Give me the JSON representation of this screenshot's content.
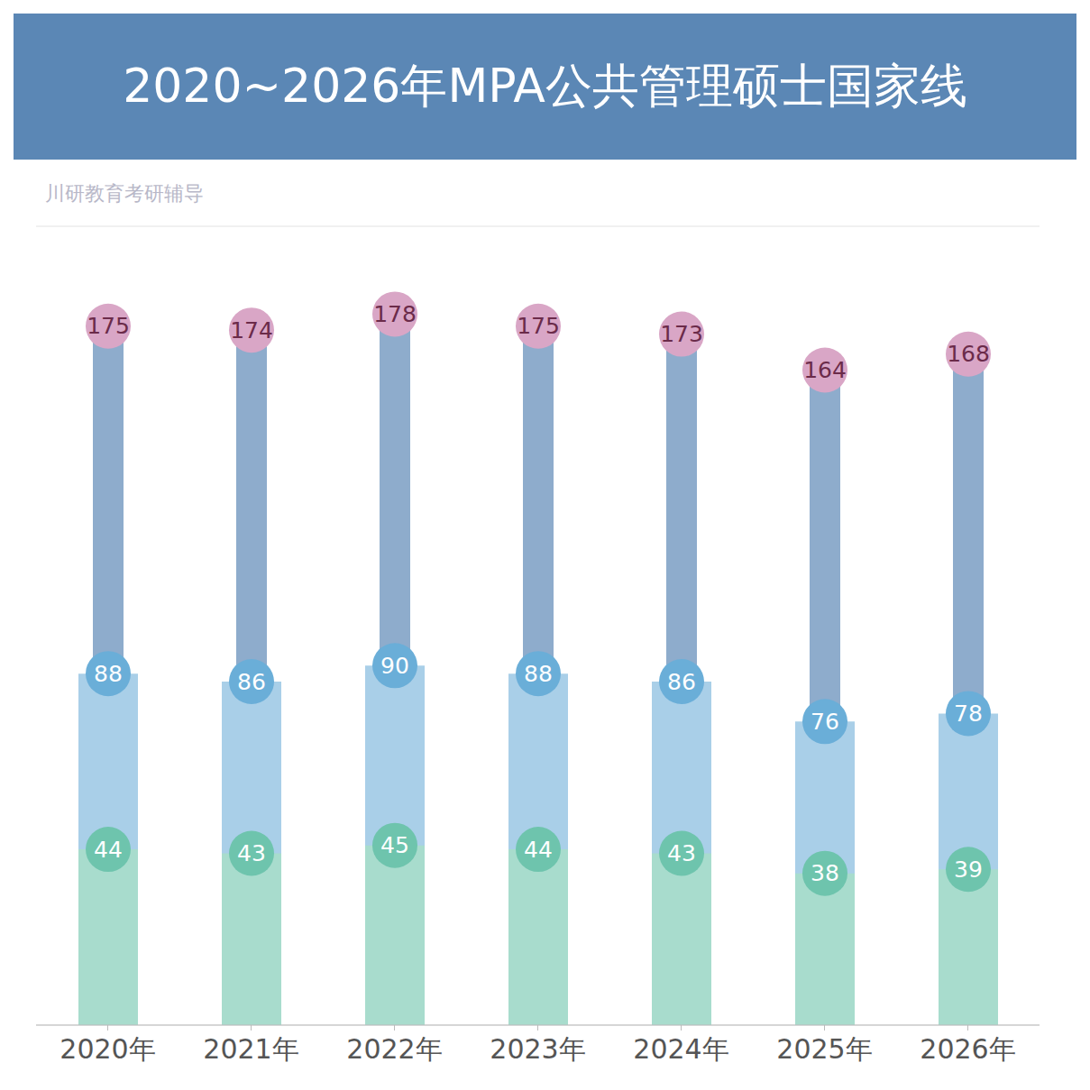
{
  "chart_data": {
    "type": "bar",
    "title": "2020~2026年MPA公共管理硕士国家线",
    "annotations": [
      "川研教育考研辅导"
    ],
    "categories": [
      "2020年",
      "2021年",
      "2022年",
      "2023年",
      "2024年",
      "2025年",
      "2026年"
    ],
    "series": [
      {
        "color": "#8eaccc",
        "values": [
          175,
          174,
          178,
          175,
          173,
          164,
          168
        ]
      },
      {
        "color": "#a9cfe8",
        "values": [
          88,
          86,
          90,
          88,
          86,
          76,
          78
        ]
      },
      {
        "color": "#a8dccd",
        "values": [
          44,
          43,
          45,
          44,
          43,
          38,
          39
        ]
      }
    ],
    "ylim": [
      0,
      200
    ],
    "yticks": [
      0,
      20,
      40,
      60,
      80,
      100,
      120,
      140,
      160,
      180,
      200
    ],
    "grid": true,
    "data_labels": true,
    "tick_labels": "x"
  }
}
